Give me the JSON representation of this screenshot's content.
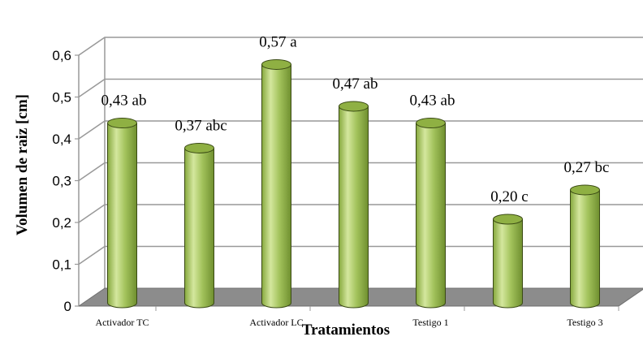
{
  "chart_data": {
    "type": "bar",
    "style": "3d-cylinder",
    "categories": [
      "Activador TC",
      "",
      "Activador LC",
      "",
      "Testigo 1",
      "",
      "Testigo 3"
    ],
    "tick_labels": [
      "Activador TC",
      "Activador LC",
      "Testigo 1",
      "Testigo 3"
    ],
    "values": [
      0.43,
      0.37,
      0.57,
      0.47,
      0.43,
      0.2,
      0.27
    ],
    "data_labels": [
      "0,43 ab",
      "0,37 abc",
      "0,57 a",
      "0,47 ab",
      "0,43 ab",
      "0,20 c",
      "0,27 bc"
    ],
    "xlabel": "Tratamientos",
    "ylabel": "Volumen de raiz [cm]",
    "ylim": [
      0,
      0.6
    ],
    "yticks": [
      "0",
      "0,1",
      "0,2",
      "0,3",
      "0,4",
      "0,5",
      "0,6"
    ],
    "grid": true,
    "legend": "none",
    "colors": {
      "bar_body": "#a3c35c",
      "bar_highlight": "#d4e79e",
      "bar_shade": "#6f8f2f",
      "bar_outline": "#3a4a14",
      "floor": "#8c8c8c",
      "grid": "#999999"
    }
  }
}
